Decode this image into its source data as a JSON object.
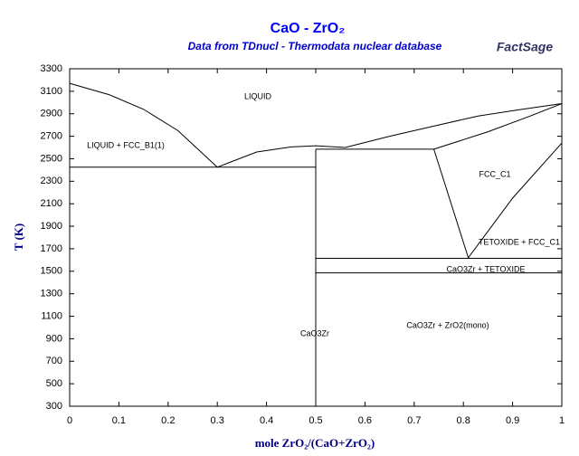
{
  "chart_data": {
    "type": "line",
    "title": "CaO - ZrO₂",
    "subtitle": "Data from TDnucl - Thermodata nuclear database",
    "logo": "FactSage",
    "x_label": "mole ZrO₂/(CaO+ZrO₂)",
    "y_label": "T (K)",
    "xlim": [
      0,
      1
    ],
    "ylim": [
      300,
      3300
    ],
    "xticks": [
      0,
      0.1,
      0.2,
      0.3,
      0.4,
      0.5,
      0.6,
      0.7,
      0.8,
      0.9,
      1
    ],
    "yticks": [
      300,
      500,
      700,
      900,
      1100,
      1300,
      1500,
      1700,
      1900,
      2100,
      2300,
      2500,
      2700,
      2900,
      3100,
      3300
    ],
    "color": "#000000",
    "series": [
      {
        "x": [
          0,
          0.08,
          0.15,
          0.22,
          0.3
        ],
        "values": [
          3170,
          3070,
          2940,
          2750,
          2425
        ]
      },
      {
        "x": [
          0.3,
          0.38,
          0.45,
          0.5,
          0.56
        ],
        "values": [
          2425,
          2560,
          2605,
          2615,
          2600
        ]
      },
      {
        "x": [
          0.56,
          0.65,
          0.75,
          0.83,
          0.92,
          1
        ],
        "values": [
          2600,
          2700,
          2800,
          2880,
          2940,
          2990
        ]
      },
      {
        "x": [
          0.74,
          0.85,
          0.93,
          1
        ],
        "values": [
          2585,
          2740,
          2870,
          2990
        ]
      },
      {
        "x": [
          0,
          0.5
        ],
        "values": [
          2425,
          2425
        ]
      },
      {
        "x": [
          0.5,
          0.74
        ],
        "values": [
          2585,
          2585
        ]
      },
      {
        "x": [
          0.5,
          0.5
        ],
        "values": [
          300,
          2585
        ]
      },
      {
        "x": [
          0.74,
          0.81
        ],
        "values": [
          2585,
          1620
        ]
      },
      {
        "x": [
          0.81,
          0.9,
          1
        ],
        "values": [
          1620,
          2150,
          2640
        ]
      },
      {
        "x": [
          0.5,
          1
        ],
        "values": [
          1615,
          1615
        ]
      },
      {
        "x": [
          0.5,
          1
        ],
        "values": [
          1485,
          1485
        ]
      }
    ],
    "annotations": [
      "LIQUID",
      "LIQUID + FCC_B1(1)",
      "FCC_C1",
      "TETOXIDE + FCC_C1",
      "CaO3Zr + TETOXIDE",
      "CaO3Zr",
      "CaO3Zr + ZrO2(mono)"
    ]
  }
}
